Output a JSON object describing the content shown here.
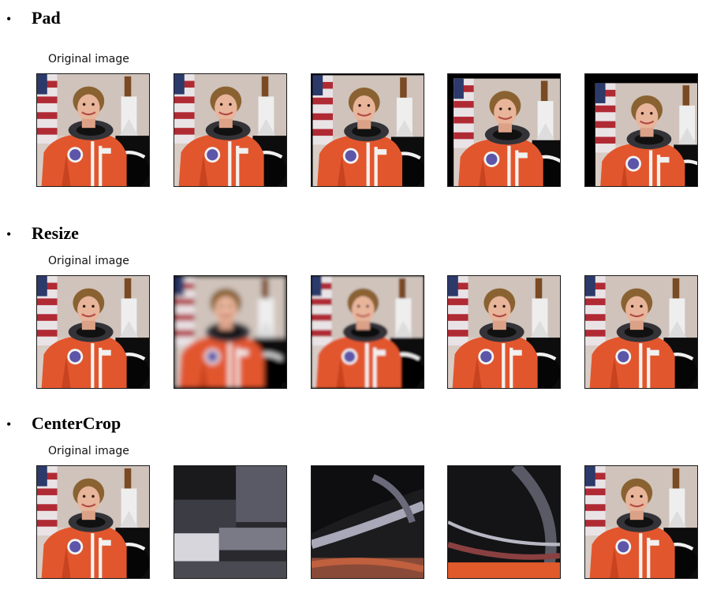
{
  "sections": [
    {
      "title": "Pad",
      "original_label": "Original image",
      "images": [
        "astronaut-original",
        "astronaut-padded-1",
        "astronaut-padded-2",
        "astronaut-padded-3",
        "astronaut-padded-4"
      ]
    },
    {
      "title": "Resize",
      "original_label": "Original image",
      "images": [
        "astronaut-original",
        "astronaut-resized-low",
        "astronaut-resized-medium",
        "astronaut-resized-high",
        "astronaut-resized-full"
      ]
    },
    {
      "title": "CenterCrop",
      "original_label": "Original image",
      "images": [
        "astronaut-original",
        "astronaut-crop-1",
        "astronaut-crop-2",
        "astronaut-crop-3",
        "astronaut-crop-4"
      ]
    }
  ],
  "bullet_glyph": "•"
}
